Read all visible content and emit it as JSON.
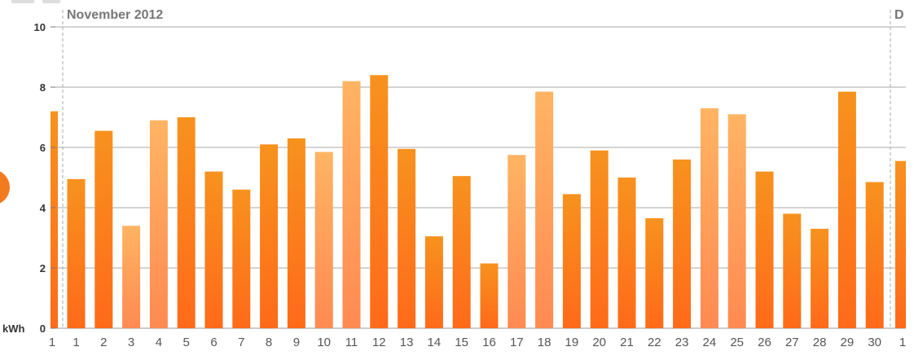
{
  "chart_data": {
    "type": "bar",
    "ylabel": "kWh",
    "ylim": [
      0,
      10
    ],
    "yticks": [
      0,
      2,
      4,
      6,
      8,
      10
    ],
    "month_label_left": "November 2012",
    "month_label_right": "D",
    "prev_label": "1",
    "next_label": "1",
    "prev_value": 7.2,
    "next_value": 5.55,
    "categories": [
      "1",
      "2",
      "3",
      "4",
      "5",
      "6",
      "7",
      "8",
      "9",
      "10",
      "11",
      "12",
      "13",
      "14",
      "15",
      "16",
      "17",
      "18",
      "19",
      "20",
      "21",
      "22",
      "23",
      "24",
      "25",
      "26",
      "27",
      "28",
      "29",
      "30"
    ],
    "values": [
      4.95,
      6.55,
      3.4,
      6.9,
      7.0,
      5.2,
      4.6,
      6.1,
      6.3,
      5.85,
      8.2,
      8.4,
      5.95,
      3.05,
      5.05,
      2.15,
      5.75,
      7.85,
      4.45,
      5.9,
      5.0,
      3.65,
      5.6,
      7.3,
      7.1,
      5.2,
      3.8,
      3.3,
      7.85,
      4.85
    ],
    "light_days": [
      "3",
      "4",
      "10",
      "11",
      "17",
      "18",
      "24",
      "25"
    ],
    "colors": {
      "bar_dark_top": "#f7921e",
      "bar_dark_bottom": "#ff6a1a",
      "bar_light_top": "#ffb463",
      "bar_light_bottom": "#ff8a52",
      "grid": "#aaaaaa",
      "separator": "#aaaaaa"
    }
  }
}
